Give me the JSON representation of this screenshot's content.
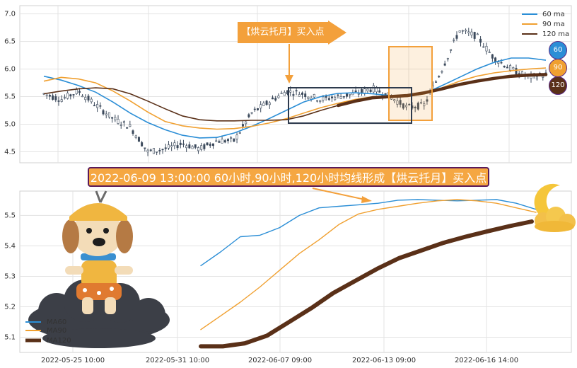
{
  "callout_top": "【烘云托月】买入点",
  "banner": "2022-06-09 13:00:00 60小时,90小时,120小时均线形成【烘云托月】买入点",
  "badges": [
    "60",
    "90",
    "120"
  ],
  "colors": {
    "ma60": "#2b8ed6",
    "ma90": "#f0a030",
    "ma120": "#5a3018",
    "candle": "#3c4a5c",
    "orange": "#f3a03b",
    "box_dark": "#2e3b4e"
  },
  "icons": [
    "cartoon-dog-on-cloud-icon",
    "moon-on-cloud-icon"
  ],
  "chart_data": [
    {
      "type": "candlestick-with-moving-averages",
      "title": "",
      "ylim": [
        4.3,
        7.15
      ],
      "y_ticks": [
        "4.5",
        "5.0",
        "5.5",
        "6.0",
        "6.5",
        "7.0"
      ],
      "legend": {
        "placement": "top-right",
        "entries": [
          "60 ma",
          "90 ma",
          "120 ma"
        ]
      },
      "grid": true,
      "series": [
        {
          "name": "60 ma",
          "values": [
            5.87,
            5.8,
            5.7,
            5.58,
            5.4,
            5.2,
            5.03,
            4.9,
            4.8,
            4.75,
            4.76,
            4.84,
            4.96,
            5.1,
            5.25,
            5.4,
            5.5,
            5.56,
            5.57,
            5.55,
            5.52,
            5.5,
            5.56,
            5.7,
            5.85,
            6.0,
            6.12,
            6.2,
            6.2,
            6.16
          ]
        },
        {
          "name": "90 ma",
          "values": [
            5.78,
            5.85,
            5.82,
            5.75,
            5.6,
            5.42,
            5.22,
            5.05,
            4.97,
            4.93,
            4.91,
            4.92,
            4.96,
            5.02,
            5.1,
            5.2,
            5.3,
            5.38,
            5.45,
            5.5,
            5.5,
            5.5,
            5.55,
            5.66,
            5.78,
            5.87,
            5.93,
            5.97,
            6.0,
            6.02
          ]
        },
        {
          "name": "120 ma",
          "values": [
            5.55,
            5.6,
            5.64,
            5.66,
            5.64,
            5.55,
            5.42,
            5.28,
            5.15,
            5.08,
            5.06,
            5.06,
            5.07,
            5.07,
            5.08,
            5.15,
            5.25,
            5.34,
            5.42,
            5.48,
            5.5,
            5.52,
            5.57,
            5.64,
            5.72,
            5.78,
            5.83,
            5.87,
            5.89,
            5.9
          ]
        }
      ],
      "price": [
        5.55,
        5.45,
        5.6,
        5.35,
        5.1,
        4.95,
        4.5,
        4.55,
        4.65,
        4.55,
        4.7,
        4.7,
        5.2,
        5.4,
        5.6,
        5.55,
        5.45,
        5.5,
        5.55,
        5.65,
        5.5,
        5.3,
        5.35,
        6.0,
        6.7,
        6.6,
        6.2,
        6.0,
        5.85,
        5.9
      ]
    },
    {
      "type": "line",
      "title": "",
      "ylim": [
        5.05,
        5.58
      ],
      "y_ticks": [
        "5.1",
        "5.2",
        "5.3",
        "5.4",
        "5.5"
      ],
      "x_ticks": [
        "2022-05-25 10:00",
        "2022-05-31 10:00",
        "2022-06-07 09:00",
        "2022-06-13 09:00",
        "2022-06-16 14:00"
      ],
      "legend": {
        "placement": "bottom-left",
        "entries": [
          "MA60",
          "MA90",
          "MA120"
        ]
      },
      "grid": true,
      "series": [
        {
          "name": "MA60",
          "values": [
            5.335,
            5.38,
            5.43,
            5.435,
            5.46,
            5.5,
            5.525,
            5.53,
            5.535,
            5.54,
            5.55,
            5.552,
            5.55,
            5.548,
            5.55,
            5.552,
            5.54,
            5.52
          ]
        },
        {
          "name": "MA90",
          "values": [
            5.125,
            5.17,
            5.215,
            5.265,
            5.32,
            5.375,
            5.42,
            5.47,
            5.505,
            5.52,
            5.53,
            5.54,
            5.548,
            5.552,
            5.548,
            5.54,
            5.525,
            5.51
          ]
        },
        {
          "name": "MA120",
          "values": [
            5.07,
            5.07,
            5.08,
            5.105,
            5.15,
            5.195,
            5.245,
            5.285,
            5.325,
            5.36,
            5.385,
            5.41,
            5.43,
            5.448,
            5.465,
            5.48
          ]
        }
      ]
    }
  ]
}
